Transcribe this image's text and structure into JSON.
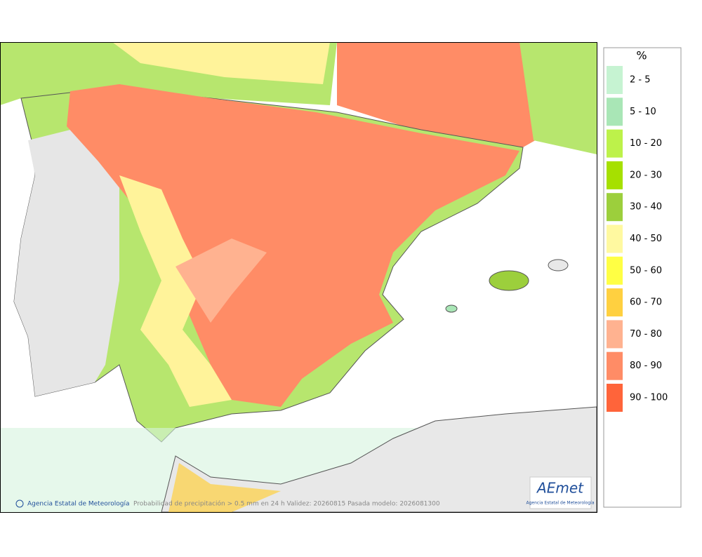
{
  "legend": {
    "title": "%",
    "items": [
      {
        "label": "2 - 5",
        "color": "#c6f3d2"
      },
      {
        "label": "5 - 10",
        "color": "#a9e6b6"
      },
      {
        "label": "10 - 20",
        "color": "#bdf24a"
      },
      {
        "label": "20 - 30",
        "color": "#a6e000"
      },
      {
        "label": "30 - 40",
        "color": "#9ccf3c"
      },
      {
        "label": "40 - 50",
        "color": "#fff9a0"
      },
      {
        "label": "50 - 60",
        "color": "#ffff44"
      },
      {
        "label": "60 - 70",
        "color": "#ffd040"
      },
      {
        "label": "70 - 80",
        "color": "#ffb290"
      },
      {
        "label": "80 - 90",
        "color": "#ff8c66"
      },
      {
        "label": "90 - 100",
        "color": "#ff643a"
      }
    ]
  },
  "footer": {
    "credit": "Agencia Estatal de Meteorología",
    "caption": "Probabilidad de precipitación > 0.5 mm en 24 h Validez: 20260815 Pasada modelo: 2026081300"
  },
  "logo": {
    "name": "AEmet",
    "subtitle": "Agencia Estatal de Meteorología"
  }
}
